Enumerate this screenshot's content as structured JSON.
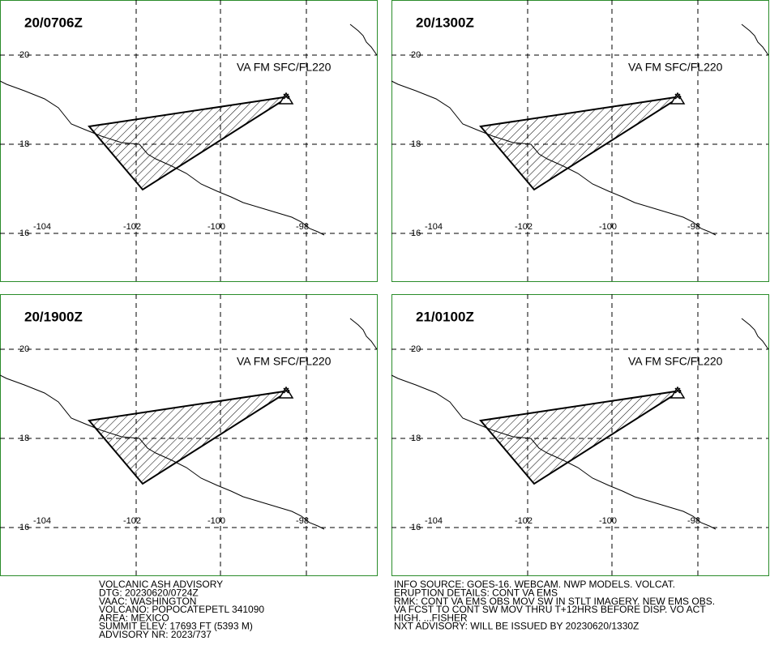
{
  "panels": [
    {
      "time": "20/0706Z",
      "level": "VA FM SFC/FL220"
    },
    {
      "time": "20/1300Z",
      "level": "VA FM SFC/FL220"
    },
    {
      "time": "20/1900Z",
      "level": "VA FM SFC/FL220"
    },
    {
      "time": "21/0100Z",
      "level": "VA FM SFC/FL220"
    }
  ],
  "lat_labels": [
    "20",
    "18",
    "16"
  ],
  "lon_labels": [
    "-104",
    "-102",
    "-100",
    "-98"
  ],
  "footer": {
    "left": [
      "VOLCANIC ASH ADVISORY",
      "DTG: 20230620/0724Z",
      "VAAC: WASHINGTON",
      "VOLCANO: POPOCATEPETL 341090",
      "AREA: MEXICO",
      "SUMMIT ELEV: 17693 FT (5393 M)",
      "ADVISORY NR: 2023/737"
    ],
    "right": [
      "INFO SOURCE: GOES-16. WEBCAM. NWP MODELS. VOLCAT.",
      "ERUPTION DETAILS: CONT VA EMS",
      "RMK: CONT VA EMS OBS MOV SW IN STLT IMAGERY. NEW EMS OBS.",
      "VA FCST TO CONT SW MOV THRU T+12HRS BEFORE DISP. VO ACT",
      "HIGH. ...FISHER",
      "NXT ADVISORY: WILL BE ISSUED BY 20230620/1330Z"
    ]
  }
}
